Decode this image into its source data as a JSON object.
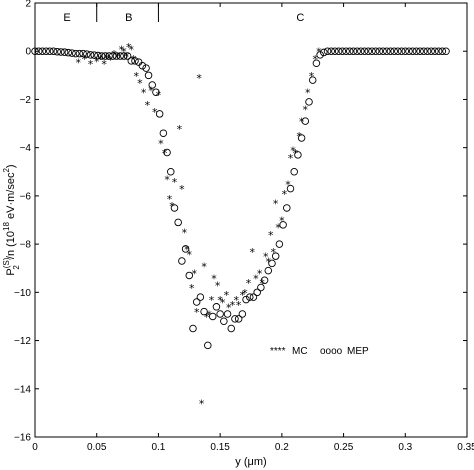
{
  "chart_data": {
    "type": "scatter",
    "xlabel": "y (μm)",
    "ylabel": {
      "base": "P",
      "sup": "(S)",
      "sub": "2",
      "rest": "/n  (10",
      "exp": "18",
      "unit": " eV·m/sec",
      "unit_sup": "2",
      "close": ")"
    },
    "xlim": [
      0,
      0.35
    ],
    "ylim": [
      -16,
      2
    ],
    "x_ticks": [
      0,
      0.05,
      0.1,
      0.15,
      0.2,
      0.25,
      0.3,
      0.35
    ],
    "x_tick_labels": [
      "0",
      "0.05",
      "0.1",
      "0.15",
      "0.2",
      "0.25",
      "0.3",
      "0.35"
    ],
    "y_ticks": [
      -16,
      -14,
      -12,
      -10,
      -8,
      -6,
      -4,
      -2,
      0,
      2
    ],
    "y_tick_labels": [
      "−16",
      "−14",
      "−12",
      "−10",
      "−8",
      "−6",
      "−4",
      "−2",
      "0",
      "2"
    ],
    "grid": false,
    "legend_position": "lower-right",
    "regions": [
      {
        "label": "E",
        "x": 0.026
      },
      {
        "label": "B",
        "x": 0.076
      },
      {
        "label": "C",
        "x": 0.215
      }
    ],
    "region_boundaries": [
      0.05,
      0.1
    ],
    "series": [
      {
        "name": "MC",
        "legend_marker": "****",
        "marker": "asterisk",
        "points": [
          [
            0.035,
            -0.45
          ],
          [
            0.04,
            -0.3
          ],
          [
            0.045,
            -0.5
          ],
          [
            0.05,
            -0.4
          ],
          [
            0.053,
            -0.3
          ],
          [
            0.056,
            -0.5
          ],
          [
            0.058,
            -0.25
          ],
          [
            0.061,
            -0.35
          ],
          [
            0.064,
            -0.1
          ],
          [
            0.067,
            -0.2
          ],
          [
            0.07,
            0.1
          ],
          [
            0.072,
            0.0
          ],
          [
            0.074,
            -0.2
          ],
          [
            0.076,
            0.2
          ],
          [
            0.078,
            0.1
          ],
          [
            0.08,
            -0.3
          ],
          [
            0.082,
            -1.0
          ],
          [
            0.085,
            -1.3
          ],
          [
            0.088,
            -1.7
          ],
          [
            0.091,
            -2.2
          ],
          [
            0.094,
            -1.6
          ],
          [
            0.097,
            -2.5
          ],
          [
            0.1,
            -1.8
          ],
          [
            0.102,
            -3.8
          ],
          [
            0.105,
            -4.2
          ],
          [
            0.107,
            -5.3
          ],
          [
            0.109,
            -6.1
          ],
          [
            0.111,
            -6.4
          ],
          [
            0.113,
            -5.4
          ],
          [
            0.117,
            -3.2
          ],
          [
            0.119,
            -5.7
          ],
          [
            0.121,
            -7.5
          ],
          [
            0.123,
            -8.2
          ],
          [
            0.125,
            -8.4
          ],
          [
            0.127,
            -9.8
          ],
          [
            0.129,
            -9.2
          ],
          [
            0.131,
            -10.8
          ],
          [
            0.133,
            -1.1
          ],
          [
            0.135,
            -14.6
          ],
          [
            0.137,
            -8.9
          ],
          [
            0.139,
            -11.0
          ],
          [
            0.141,
            -10.9
          ],
          [
            0.143,
            -10.3
          ],
          [
            0.145,
            -9.4
          ],
          [
            0.148,
            -9.7
          ],
          [
            0.15,
            -10.3
          ],
          [
            0.152,
            -10.4
          ],
          [
            0.155,
            -10.1
          ],
          [
            0.157,
            -10.6
          ],
          [
            0.16,
            -10.5
          ],
          [
            0.163,
            -10.3
          ],
          [
            0.165,
            -10.5
          ],
          [
            0.168,
            -10.1
          ],
          [
            0.17,
            -10.0
          ],
          [
            0.173,
            -9.6
          ],
          [
            0.176,
            -8.3
          ],
          [
            0.179,
            -9.4
          ],
          [
            0.182,
            -9.2
          ],
          [
            0.184,
            -9.6
          ],
          [
            0.187,
            -8.5
          ],
          [
            0.189,
            -8.7
          ],
          [
            0.191,
            -7.6
          ],
          [
            0.193,
            -8.3
          ],
          [
            0.195,
            -6.3
          ],
          [
            0.197,
            -7.3
          ],
          [
            0.2,
            -7.0
          ],
          [
            0.202,
            -5.9
          ],
          [
            0.205,
            -5.5
          ],
          [
            0.207,
            -4.4
          ],
          [
            0.209,
            -4.1
          ],
          [
            0.211,
            -4.2
          ],
          [
            0.214,
            -3.5
          ],
          [
            0.216,
            -2.9
          ],
          [
            0.219,
            -2.4
          ],
          [
            0.221,
            -1.7
          ],
          [
            0.224,
            -1.0
          ],
          [
            0.227,
            -0.3
          ],
          [
            0.23,
            0.0
          ]
        ]
      },
      {
        "name": "MEP",
        "legend_marker": "oooo",
        "marker": "circle",
        "points": [
          [
            0.0,
            0.0
          ],
          [
            0.003,
            0.0
          ],
          [
            0.006,
            0.0
          ],
          [
            0.009,
            0.0
          ],
          [
            0.012,
            0.0
          ],
          [
            0.015,
            0.0
          ],
          [
            0.018,
            -0.02
          ],
          [
            0.021,
            -0.03
          ],
          [
            0.024,
            -0.04
          ],
          [
            0.027,
            -0.06
          ],
          [
            0.03,
            -0.08
          ],
          [
            0.033,
            -0.1
          ],
          [
            0.036,
            -0.1
          ],
          [
            0.039,
            -0.1
          ],
          [
            0.042,
            -0.12
          ],
          [
            0.045,
            -0.15
          ],
          [
            0.048,
            -0.16
          ],
          [
            0.051,
            -0.18
          ],
          [
            0.054,
            -0.2
          ],
          [
            0.057,
            -0.2
          ],
          [
            0.06,
            -0.2
          ],
          [
            0.063,
            -0.2
          ],
          [
            0.066,
            -0.2
          ],
          [
            0.069,
            -0.2
          ],
          [
            0.072,
            -0.2
          ],
          [
            0.075,
            -0.2
          ],
          [
            0.078,
            -0.4
          ],
          [
            0.081,
            -0.4
          ],
          [
            0.084,
            -0.45
          ],
          [
            0.087,
            -0.6
          ],
          [
            0.09,
            -0.7
          ],
          [
            0.092,
            -1.0
          ],
          [
            0.095,
            -1.4
          ],
          [
            0.098,
            -1.7
          ],
          [
            0.101,
            -2.6
          ],
          [
            0.104,
            -3.4
          ],
          [
            0.107,
            -4.2
          ],
          [
            0.11,
            -5.0
          ],
          [
            0.113,
            -6.5
          ],
          [
            0.116,
            -7.1
          ],
          [
            0.119,
            -8.7
          ],
          [
            0.122,
            -8.2
          ],
          [
            0.125,
            -9.3
          ],
          [
            0.128,
            -11.5
          ],
          [
            0.131,
            -10.4
          ],
          [
            0.134,
            -10.2
          ],
          [
            0.137,
            -10.8
          ],
          [
            0.14,
            -12.2
          ],
          [
            0.144,
            -11.0
          ],
          [
            0.147,
            -10.6
          ],
          [
            0.15,
            -10.9
          ],
          [
            0.153,
            -11.2
          ],
          [
            0.156,
            -10.9
          ],
          [
            0.159,
            -11.5
          ],
          [
            0.162,
            -11.1
          ],
          [
            0.165,
            -11.1
          ],
          [
            0.168,
            -10.9
          ],
          [
            0.171,
            -10.3
          ],
          [
            0.174,
            -10.2
          ],
          [
            0.177,
            -10.2
          ],
          [
            0.18,
            -10.0
          ],
          [
            0.183,
            -9.8
          ],
          [
            0.186,
            -9.5
          ],
          [
            0.189,
            -9.1
          ],
          [
            0.192,
            -8.8
          ],
          [
            0.195,
            -8.5
          ],
          [
            0.198,
            -8.0
          ],
          [
            0.201,
            -7.2
          ],
          [
            0.204,
            -6.5
          ],
          [
            0.207,
            -5.7
          ],
          [
            0.21,
            -5.0
          ],
          [
            0.213,
            -4.3
          ],
          [
            0.216,
            -3.6
          ],
          [
            0.219,
            -2.9
          ],
          [
            0.222,
            -2.1
          ],
          [
            0.225,
            -1.2
          ],
          [
            0.228,
            -0.5
          ],
          [
            0.231,
            -0.15
          ],
          [
            0.234,
            -0.05
          ],
          [
            0.237,
            0.0
          ],
          [
            0.24,
            0.0
          ],
          [
            0.243,
            0.0
          ],
          [
            0.246,
            0.0
          ],
          [
            0.249,
            0.0
          ],
          [
            0.252,
            0.0
          ],
          [
            0.255,
            0.0
          ],
          [
            0.258,
            0.0
          ],
          [
            0.261,
            0.0
          ],
          [
            0.264,
            0.0
          ],
          [
            0.267,
            0.0
          ],
          [
            0.27,
            0.0
          ],
          [
            0.273,
            0.0
          ],
          [
            0.276,
            0.0
          ],
          [
            0.279,
            0.0
          ],
          [
            0.282,
            0.0
          ],
          [
            0.285,
            0.0
          ],
          [
            0.288,
            0.0
          ],
          [
            0.291,
            0.0
          ],
          [
            0.294,
            0.0
          ],
          [
            0.297,
            0.0
          ],
          [
            0.3,
            0.0
          ],
          [
            0.303,
            0.0
          ],
          [
            0.306,
            0.0
          ],
          [
            0.309,
            0.0
          ],
          [
            0.312,
            0.0
          ],
          [
            0.315,
            0.0
          ],
          [
            0.318,
            0.0
          ],
          [
            0.321,
            0.0
          ],
          [
            0.324,
            0.0
          ],
          [
            0.327,
            0.0
          ],
          [
            0.33,
            0.0
          ],
          [
            0.333,
            0.0
          ]
        ]
      }
    ]
  }
}
